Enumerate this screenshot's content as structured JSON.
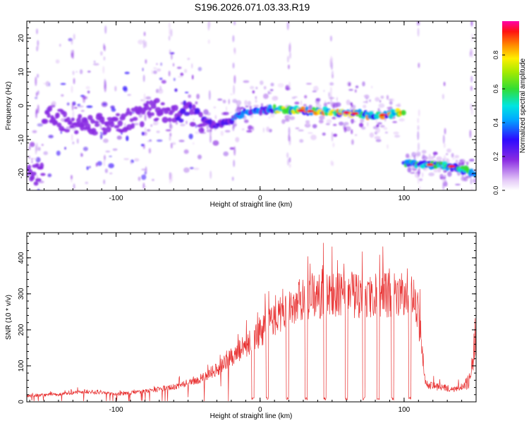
{
  "title": "S196.2026.071.03.33.R19",
  "chart_data": [
    {
      "type": "heatmap",
      "xlabel": "Height of straight line (km)",
      "ylabel": "Frequency (Hz)",
      "xlim": [
        -162,
        150
      ],
      "ylim": [
        -25,
        25
      ],
      "xticks": [
        -100,
        0,
        100
      ],
      "xtick_labels": [
        "-100",
        "0",
        "100"
      ],
      "yticks": [
        -20,
        -10,
        0,
        10,
        20
      ],
      "ytick_labels": [
        "-20",
        "-10",
        "0",
        "10",
        "20"
      ],
      "colorbar": {
        "label": "Normalized spectral amplitude",
        "range": [
          0.0,
          1.0
        ],
        "ticks": [
          0.0,
          0.2,
          0.4,
          0.6,
          0.8
        ],
        "tick_labels": [
          "0.0",
          "0.2",
          "0.4",
          "0.6",
          "0.8"
        ]
      },
      "ridge": {
        "description_points": [
          {
            "x": -150,
            "y": -2
          },
          {
            "x": -130,
            "y": -6
          },
          {
            "x": -100,
            "y": -5
          },
          {
            "x": -70,
            "y": -1
          },
          {
            "x": -50,
            "y": -2
          },
          {
            "x": -30,
            "y": -6
          },
          {
            "x": -10,
            "y": -2
          },
          {
            "x": 10,
            "y": -1
          },
          {
            "x": 30,
            "y": -1.5
          },
          {
            "x": 60,
            "y": -2
          },
          {
            "x": 80,
            "y": -3
          },
          {
            "x": 98,
            "y": -2
          },
          {
            "x": 102,
            "y": -17
          },
          {
            "x": 120,
            "y": -17.5
          },
          {
            "x": 135,
            "y": -18
          },
          {
            "x": 148,
            "y": -20
          }
        ]
      }
    },
    {
      "type": "line",
      "xlabel": "Height of straight line (km)",
      "ylabel": "SNR (10 * v/v)",
      "xlim": [
        -162,
        150
      ],
      "ylim": [
        0,
        470
      ],
      "xticks": [
        -100,
        0,
        100
      ],
      "xtick_labels": [
        "-100",
        "0",
        "100"
      ],
      "yticks": [
        0,
        100,
        200,
        300,
        400
      ],
      "ytick_labels": [
        "0",
        "100",
        "200",
        "300",
        "400"
      ],
      "series": [
        {
          "name": "SNR",
          "color": "#e83030",
          "envelope_x": [
            -162,
            -140,
            -120,
            -100,
            -80,
            -60,
            -40,
            -30,
            -20,
            -10,
            0,
            10,
            20,
            30,
            50,
            70,
            90,
            105,
            110,
            115,
            125,
            135,
            145,
            150
          ],
          "envelope_y": [
            20,
            25,
            35,
            25,
            35,
            50,
            80,
            110,
            150,
            190,
            230,
            280,
            320,
            350,
            360,
            355,
            360,
            365,
            300,
            60,
            50,
            45,
            60,
            200
          ],
          "dropouts_x": [
            -5,
            5,
            19,
            32,
            45,
            60,
            72,
            82,
            92,
            104
          ]
        }
      ]
    }
  ]
}
